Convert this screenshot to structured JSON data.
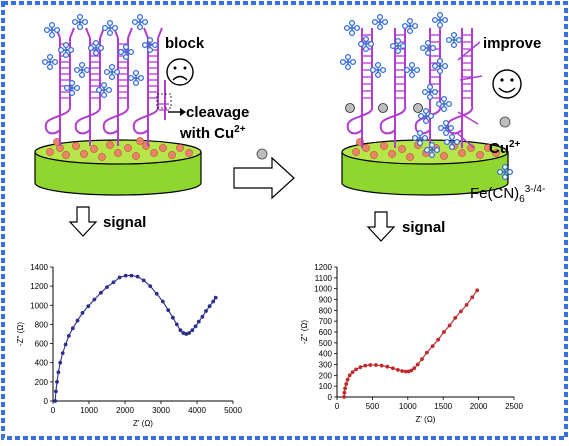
{
  "labels": {
    "block": "block",
    "cleavage_line1": "cleavage",
    "cleavage_line2": "with Cu",
    "cleavage_sup": "2+",
    "improve": "improve",
    "cu_label": "Cu",
    "cu_sup": "2+",
    "fe_label": "Fe(CN)",
    "fe_sub": "6",
    "fe_sup": "3-/4-",
    "signal_left": "signal",
    "signal_right": "signal"
  },
  "colors": {
    "border": "#3b6fe0",
    "electrode_top": "#b6e64a",
    "electrode_side": "#8fd62f",
    "dna": "#b23bd1",
    "probe": "#3a6fd8",
    "nanoparticle": "#e8846a",
    "curve_left": "#2b2f8a",
    "curve_right": "#c0282c"
  },
  "chart_data": [
    {
      "type": "scatter",
      "xlabel": "Z' (Ω)",
      "ylabel": "-Z'' (Ω)",
      "xlim": [
        0,
        5000
      ],
      "ylim": [
        0,
        1400
      ],
      "xticks": [
        "0",
        "1000",
        "2000",
        "3000",
        "4000",
        "5000"
      ],
      "yticks": [
        "0",
        "200",
        "400",
        "600",
        "800",
        "1000",
        "1200",
        "1400"
      ],
      "series": [
        {
          "x": [
            60,
            80,
            110,
            150,
            200,
            270,
            350,
            440,
            550,
            680,
            820,
            980,
            1150,
            1330,
            1500,
            1680,
            1850,
            2020,
            2180,
            2350,
            2520,
            2700,
            2880,
            3050,
            3200,
            3330,
            3440,
            3540,
            3620,
            3700,
            3780,
            3870,
            3960,
            4050,
            4150,
            4250,
            4350,
            4450,
            4520
          ],
          "y": [
            0,
            100,
            200,
            300,
            400,
            500,
            590,
            680,
            760,
            840,
            920,
            990,
            1060,
            1130,
            1190,
            1240,
            1290,
            1310,
            1310,
            1300,
            1260,
            1200,
            1120,
            1040,
            950,
            870,
            800,
            740,
            710,
            700,
            710,
            740,
            780,
            830,
            880,
            940,
            990,
            1040,
            1080
          ]
        }
      ]
    },
    {
      "type": "scatter",
      "xlabel": "Z' (Ω)",
      "ylabel": "-Z'' (Ω)",
      "xlim": [
        0,
        2500
      ],
      "ylim": [
        0,
        1200
      ],
      "xticks": [
        "0",
        "500",
        "1000",
        "1500",
        "2000",
        "2500"
      ],
      "yticks": [
        "0",
        "100",
        "200",
        "300",
        "400",
        "500",
        "600",
        "700",
        "800",
        "900",
        "1000",
        "1100",
        "1200"
      ],
      "series": [
        {
          "x": [
            100,
            105,
            115,
            130,
            150,
            180,
            220,
            270,
            330,
            400,
            470,
            550,
            630,
            710,
            790,
            860,
            920,
            970,
            1010,
            1050,
            1090,
            1140,
            1200,
            1270,
            1350,
            1430,
            1510,
            1590,
            1670,
            1750,
            1830,
            1910,
            1980
          ],
          "y": [
            0,
            40,
            80,
            120,
            160,
            200,
            230,
            255,
            275,
            290,
            295,
            295,
            290,
            280,
            265,
            250,
            240,
            235,
            235,
            245,
            265,
            300,
            350,
            410,
            470,
            530,
            600,
            660,
            730,
            790,
            850,
            920,
            985
          ]
        }
      ]
    }
  ]
}
